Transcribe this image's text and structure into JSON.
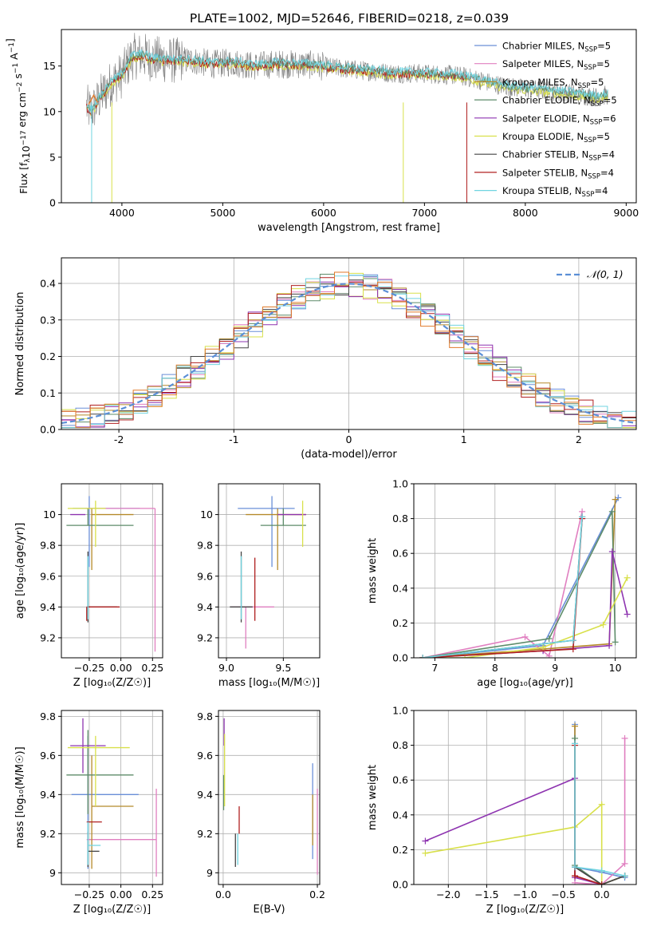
{
  "title": "PLATE=1002, MJD=52646, FIBERID=0218, z=0.039",
  "colors": {
    "chabrier_miles": "#6a8fd8",
    "salpeter_miles": "#e07fc0",
    "kroupa_miles": "#b58a2a",
    "chabrier_elodie": "#5e8c6a",
    "salpeter_elodie": "#8e34b0",
    "kroupa_elodie": "#d8e04a",
    "chabrier_stelib": "#444444",
    "salpeter_stelib": "#b02020",
    "kroupa_stelib": "#70d4e0",
    "data": "#808080",
    "orange": "#e07a2a"
  },
  "legend": [
    {
      "name": "Chabrier MILES, N",
      "sub": "SSP",
      "suffix": "=5",
      "color_key": "chabrier_miles"
    },
    {
      "name": "Salpeter MILES, N",
      "sub": "SSP",
      "suffix": "=5",
      "color_key": "salpeter_miles"
    },
    {
      "name": "Kroupa MILES, N",
      "sub": "SSP",
      "suffix": "=5",
      "color_key": "kroupa_miles"
    },
    {
      "name": "Chabrier ELODIE, N",
      "sub": "SSP",
      "suffix": "=5",
      "color_key": "chabrier_elodie"
    },
    {
      "name": "Salpeter ELODIE, N",
      "sub": "SSP",
      "suffix": "=6",
      "color_key": "salpeter_elodie"
    },
    {
      "name": "Kroupa ELODIE, N",
      "sub": "SSP",
      "suffix": "=5",
      "color_key": "kroupa_elodie"
    },
    {
      "name": "Chabrier STELIB, N",
      "sub": "SSP",
      "suffix": "=4",
      "color_key": "chabrier_stelib"
    },
    {
      "name": "Salpeter STELIB, N",
      "sub": "SSP",
      "suffix": "=4",
      "color_key": "salpeter_stelib"
    },
    {
      "name": "Kroupa STELIB, N",
      "sub": "SSP",
      "suffix": "=4",
      "color_key": "kroupa_stelib"
    }
  ],
  "chart_data": [
    {
      "id": "spectrum",
      "type": "line",
      "xlabel": "wavelength [Angstrom, rest frame]",
      "ylabel_parts": [
        "Flux [f",
        "λ",
        "10",
        "−17",
        " erg cm",
        "−2",
        " s",
        "−1",
        " A",
        "−1",
        "]"
      ],
      "xlim": [
        3400,
        9100
      ],
      "ylim": [
        0,
        19
      ],
      "xticks": [
        4000,
        5000,
        6000,
        7000,
        8000,
        9000
      ],
      "yticks": [
        0,
        5,
        10,
        15
      ],
      "series_anchor_x": [
        3650,
        3700,
        3800,
        3900,
        4000,
        4100,
        4200,
        4300,
        4500,
        4700,
        4900,
        5100,
        5300,
        5500,
        5700,
        5900,
        6100,
        6300,
        6500,
        6700,
        6900,
        7100,
        7300,
        7500,
        7700,
        7900,
        8100,
        8300,
        8500,
        8700,
        8800
      ],
      "series_anchor_y": [
        10.5,
        10.0,
        11.8,
        13.2,
        14.0,
        16.0,
        16.2,
        15.8,
        15.6,
        15.6,
        15.2,
        15.4,
        15.0,
        15.2,
        15.2,
        15.1,
        14.8,
        14.6,
        14.4,
        14.2,
        14.2,
        14.1,
        14.0,
        13.6,
        13.0,
        12.6,
        12.4,
        12.2,
        11.9,
        11.6,
        11.8
      ]
    },
    {
      "id": "residuals",
      "type": "step",
      "xlabel": "(data-model)/error",
      "ylabel": "Normed distribution",
      "xlim": [
        -2.5,
        2.5
      ],
      "ylim": [
        0,
        0.47
      ],
      "xticks": [
        -2,
        -1,
        0,
        1,
        2
      ],
      "yticks": [
        0.0,
        0.1,
        0.2,
        0.3,
        0.4
      ],
      "bin_width": 0.125,
      "gaussian_label": "𝒩(0, 1)"
    },
    {
      "id": "age_vs_Z",
      "type": "errorbar",
      "xlabel": "Z [log₁₀(Z/Z☉)]",
      "ylabel": "age  [log₁₀(age/yr)]",
      "xlim": [
        -0.47,
        0.33
      ],
      "ylim": [
        9.07,
        10.2
      ],
      "xticks": [
        -0.25,
        0.0,
        0.25
      ],
      "xtick_labels": [
        "−0.25",
        "0.00",
        "0.25"
      ],
      "yticks": [
        9.2,
        9.4,
        9.6,
        9.8,
        10.0
      ],
      "items": [
        {
          "c": "chabrier_miles",
          "x": -0.25,
          "y": 10.04,
          "xe": [
            0.13,
            0.4
          ],
          "ye": [
            0.38,
            0.08
          ]
        },
        {
          "c": "salpeter_miles",
          "x": 0.27,
          "y": 10.04,
          "xe": [
            0.55,
            0.0
          ],
          "ye": [
            0.93,
            0.0
          ]
        },
        {
          "c": "kroupa_miles",
          "x": -0.23,
          "y": 10.0,
          "xe": [
            0.0,
            0.33
          ],
          "ye": [
            0.36,
            0.04
          ]
        },
        {
          "c": "chabrier_elodie",
          "x": -0.26,
          "y": 9.93,
          "xe": [
            0.17,
            0.36
          ],
          "ye": [
            0.0,
            0.11
          ]
        },
        {
          "c": "salpeter_elodie",
          "x": -0.28,
          "y": 10.0,
          "xe": [
            0.12,
            0.0
          ],
          "ye": [
            0.0,
            0.0
          ]
        },
        {
          "c": "kroupa_elodie",
          "x": -0.2,
          "y": 10.04,
          "xe": [
            0.22,
            0.08
          ],
          "ye": [
            0.25,
            0.05
          ]
        },
        {
          "c": "chabrier_stelib",
          "x": -0.26,
          "y": 9.4,
          "xe": [
            0.0,
            0.23
          ],
          "ye": [
            0.1,
            0.36
          ]
        },
        {
          "c": "salpeter_stelib",
          "x": -0.27,
          "y": 9.4,
          "xe": [
            0.0,
            0.26
          ],
          "ye": [
            0.09,
            0.0
          ]
        },
        {
          "c": "kroupa_stelib",
          "x": -0.26,
          "y": 9.4,
          "xe": [
            0.0,
            0.0
          ],
          "ye": [
            0.08,
            0.33
          ]
        }
      ]
    },
    {
      "id": "age_vs_mass",
      "type": "errorbar",
      "xlabel": "mass [log₁₀(M/M☉)]",
      "ylabel": "",
      "xlim": [
        8.93,
        9.82
      ],
      "ylim": [
        9.07,
        10.2
      ],
      "xticks": [
        9.0,
        9.5
      ],
      "xtick_labels": [
        "9.0",
        "9.5"
      ],
      "yticks": [
        9.2,
        9.4,
        9.6,
        9.8,
        10.0
      ],
      "items": [
        {
          "c": "chabrier_miles",
          "x": 9.4,
          "y": 10.04,
          "xe": [
            0.3,
            0.2
          ],
          "ye": [
            0.38,
            0.08
          ]
        },
        {
          "c": "salpeter_miles",
          "x": 9.17,
          "y": 9.4,
          "xe": [
            0.13,
            0.25
          ],
          "ye": [
            0.27,
            0.0
          ]
        },
        {
          "c": "kroupa_miles",
          "x": 9.45,
          "y": 10.0,
          "xe": [
            0.28,
            0.25
          ],
          "ye": [
            0.36,
            0.04
          ]
        },
        {
          "c": "chabrier_elodie",
          "x": 9.5,
          "y": 9.93,
          "xe": [
            0.2,
            0.2
          ],
          "ye": [
            0.0,
            0.11
          ]
        },
        {
          "c": "salpeter_elodie",
          "x": 9.6,
          "y": 10.0,
          "xe": [
            0.15,
            0.1
          ],
          "ye": [
            0.0,
            0.0
          ]
        },
        {
          "c": "kroupa_elodie",
          "x": 9.67,
          "y": 10.04,
          "xe": [
            0.0,
            0.0
          ],
          "ye": [
            0.25,
            0.05
          ]
        },
        {
          "c": "chabrier_stelib",
          "x": 9.13,
          "y": 9.4,
          "xe": [
            0.1,
            0.1
          ],
          "ye": [
            0.1,
            0.36
          ]
        },
        {
          "c": "salpeter_stelib",
          "x": 9.25,
          "y": 9.4,
          "xe": [
            0.0,
            0.0
          ],
          "ye": [
            0.09,
            0.32
          ]
        },
        {
          "c": "kroupa_stelib",
          "x": 9.13,
          "y": 9.4,
          "xe": [
            0.0,
            0.0
          ],
          "ye": [
            0.08,
            0.33
          ]
        }
      ]
    },
    {
      "id": "weight_vs_age",
      "type": "line",
      "xlabel": "age  [log₁₀(age/yr)]",
      "ylabel": "mass weight",
      "xlim": [
        6.65,
        10.35
      ],
      "ylim": [
        0,
        1
      ],
      "xticks": [
        7,
        8,
        9,
        10
      ],
      "yticks": [
        0.0,
        0.2,
        0.4,
        0.6,
        0.8,
        1.0
      ],
      "series": [
        {
          "c": "chabrier_miles",
          "x": [
            6.8,
            8.8,
            10.05
          ],
          "y": [
            0.0,
            0.07,
            0.92
          ]
        },
        {
          "c": "salpeter_miles",
          "x": [
            6.8,
            8.5,
            8.9,
            9.45
          ],
          "y": [
            0.0,
            0.12,
            0.01,
            0.84
          ]
        },
        {
          "c": "kroupa_miles",
          "x": [
            6.8,
            8.8,
            9.9,
            10.0
          ],
          "y": [
            0.0,
            0.05,
            0.08,
            0.91
          ]
        },
        {
          "c": "chabrier_elodie",
          "x": [
            6.8,
            8.9,
            9.95,
            10.0
          ],
          "y": [
            0.0,
            0.11,
            0.84,
            0.09
          ]
        },
        {
          "c": "salpeter_elodie",
          "x": [
            6.8,
            8.8,
            9.9,
            9.95,
            10.2
          ],
          "y": [
            0.0,
            0.04,
            0.07,
            0.61,
            0.25
          ]
        },
        {
          "c": "kroupa_elodie",
          "x": [
            6.8,
            7.5,
            8.8,
            9.8,
            10.2
          ],
          "y": [
            0.0,
            0.0,
            0.06,
            0.19,
            0.46
          ]
        },
        {
          "c": "chabrier_stelib",
          "x": [
            6.8,
            9.3,
            9.45
          ],
          "y": [
            0.0,
            0.1,
            0.81
          ]
        },
        {
          "c": "salpeter_stelib",
          "x": [
            6.8,
            9.3,
            9.45
          ],
          "y": [
            0.0,
            0.05,
            0.8
          ]
        },
        {
          "c": "kroupa_stelib",
          "x": [
            6.8,
            9.3,
            9.45
          ],
          "y": [
            0.0,
            0.1,
            0.81
          ]
        }
      ]
    },
    {
      "id": "mass_vs_Z",
      "type": "errorbar",
      "xlabel": "Z [log₁₀(Z/Z☉)]",
      "ylabel": "mass [log₁₀(M/M☉)]",
      "xlim": [
        -0.47,
        0.33
      ],
      "ylim": [
        8.94,
        9.83
      ],
      "xticks": [
        -0.25,
        0.0,
        0.25
      ],
      "xtick_labels": [
        "−0.25",
        "0.00",
        "0.25"
      ],
      "yticks": [
        9.0,
        9.2,
        9.4,
        9.6,
        9.8
      ],
      "items": [
        {
          "c": "chabrier_miles",
          "x": -0.26,
          "y": 9.4,
          "xe": [
            0.13,
            0.4
          ],
          "ye": [
            0.38,
            0.3
          ]
        },
        {
          "c": "salpeter_miles",
          "x": 0.28,
          "y": 9.17,
          "xe": [
            0.55,
            0.0
          ],
          "ye": [
            0.19,
            0.26
          ]
        },
        {
          "c": "kroupa_miles",
          "x": -0.23,
          "y": 9.34,
          "xe": [
            0.0,
            0.33
          ],
          "ye": [
            0.32,
            0.26
          ]
        },
        {
          "c": "chabrier_elodie",
          "x": -0.26,
          "y": 9.5,
          "xe": [
            0.17,
            0.36
          ],
          "ye": [
            0.2,
            0.23
          ]
        },
        {
          "c": "salpeter_elodie",
          "x": -0.3,
          "y": 9.65,
          "xe": [
            0.1,
            0.18
          ],
          "ye": [
            0.14,
            0.14
          ]
        },
        {
          "c": "kroupa_elodie",
          "x": -0.2,
          "y": 9.64,
          "xe": [
            0.22,
            0.27
          ],
          "ye": [
            0.3,
            0.06
          ]
        },
        {
          "c": "chabrier_stelib",
          "x": -0.26,
          "y": 9.11,
          "xe": [
            0.0,
            0.09
          ],
          "ye": [
            0.08,
            0.1
          ]
        },
        {
          "c": "salpeter_stelib",
          "x": -0.27,
          "y": 9.26,
          "xe": [
            0.0,
            0.12
          ],
          "ye": [
            0.0,
            0.0
          ]
        },
        {
          "c": "kroupa_stelib",
          "x": -0.26,
          "y": 9.14,
          "xe": [
            0.0,
            0.1
          ],
          "ye": [
            0.1,
            0.12
          ]
        }
      ]
    },
    {
      "id": "mass_vs_ebv",
      "type": "errorbar",
      "xlabel": "E(B-V)",
      "ylabel": "",
      "xlim": [
        -0.01,
        0.205
      ],
      "ylim": [
        8.94,
        9.83
      ],
      "xticks": [
        0.0,
        0.2
      ],
      "xtick_labels": [
        "0.0",
        "0.2"
      ],
      "yticks": [
        9.0,
        9.2,
        9.4,
        9.6,
        9.8
      ],
      "items": [
        {
          "c": "chabrier_miles",
          "x": 0.19,
          "y": 9.4,
          "xe": [
            0,
            0
          ],
          "ye": [
            0.33,
            0.16
          ]
        },
        {
          "c": "salpeter_miles",
          "x": 0.2,
          "y": 9.17,
          "xe": [
            0,
            0
          ],
          "ye": [
            0.18,
            0.26
          ]
        },
        {
          "c": "kroupa_miles",
          "x": 0.19,
          "y": 9.34,
          "xe": [
            0,
            0
          ],
          "ye": [
            0.2,
            0.06
          ]
        },
        {
          "c": "chabrier_elodie",
          "x": 0.001,
          "y": 9.5,
          "xe": [
            0,
            0
          ],
          "ye": [
            0.18,
            0.0
          ]
        },
        {
          "c": "salpeter_elodie",
          "x": 0.002,
          "y": 9.65,
          "xe": [
            0,
            0
          ],
          "ye": [
            0.0,
            0.14
          ]
        },
        {
          "c": "kroupa_elodie",
          "x": 0.003,
          "y": 9.64,
          "xe": [
            0,
            0
          ],
          "ye": [
            0.3,
            0.07
          ]
        },
        {
          "c": "chabrier_stelib",
          "x": 0.026,
          "y": 9.11,
          "xe": [
            0,
            0
          ],
          "ye": [
            0.08,
            0.09
          ]
        },
        {
          "c": "salpeter_stelib",
          "x": 0.034,
          "y": 9.26,
          "xe": [
            0,
            0
          ],
          "ye": [
            0.06,
            0.08
          ]
        },
        {
          "c": "kroupa_stelib",
          "x": 0.031,
          "y": 9.14,
          "xe": [
            0,
            0
          ],
          "ye": [
            0.1,
            0.06
          ]
        }
      ]
    },
    {
      "id": "weight_vs_Z",
      "type": "line",
      "xlabel": "Z [log₁₀(Z/Z☉)]",
      "ylabel": "mass weight",
      "xlim": [
        -2.45,
        0.45
      ],
      "ylim": [
        0,
        1
      ],
      "xticks": [
        -2.0,
        -1.5,
        -1.0,
        -0.5,
        0.0
      ],
      "xtick_labels": [
        "−2.0",
        "−1.5",
        "−1.0",
        "−0.5",
        "0.0"
      ],
      "yticks": [
        0.0,
        0.2,
        0.4,
        0.6,
        0.8,
        1.0
      ],
      "series": [
        {
          "c": "chabrier_miles",
          "x": [
            -0.35,
            -0.35,
            0.0,
            0.3
          ],
          "y": [
            0.92,
            0.1,
            0.07,
            0.04
          ]
        },
        {
          "c": "salpeter_miles",
          "x": [
            -0.35,
            0.0,
            0.3,
            0.3
          ],
          "y": [
            0.01,
            0.0,
            0.12,
            0.84
          ]
        },
        {
          "c": "kroupa_miles",
          "x": [
            -0.35,
            -0.35,
            0.0,
            0.3
          ],
          "y": [
            0.91,
            0.05,
            0.0,
            0.05
          ]
        },
        {
          "c": "chabrier_elodie",
          "x": [
            -0.35,
            -0.35,
            0.0,
            0.3
          ],
          "y": [
            0.84,
            0.11,
            0.0,
            0.05
          ]
        },
        {
          "c": "salpeter_elodie",
          "x": [
            -2.3,
            -0.35,
            -0.35,
            0.0,
            0.3
          ],
          "y": [
            0.25,
            0.61,
            0.04,
            0.0,
            0.05
          ]
        },
        {
          "c": "kroupa_elodie",
          "x": [
            -2.3,
            -0.35,
            0.0,
            0.0,
            0.3
          ],
          "y": [
            0.18,
            0.33,
            0.46,
            0.0,
            0.05
          ]
        },
        {
          "c": "chabrier_stelib",
          "x": [
            -0.35,
            -0.35,
            0.0,
            0.3
          ],
          "y": [
            0.81,
            0.1,
            0.0,
            0.05
          ]
        },
        {
          "c": "salpeter_stelib",
          "x": [
            -0.35,
            -0.35,
            0.0
          ],
          "y": [
            0.8,
            0.05,
            0.0
          ]
        },
        {
          "c": "kroupa_stelib",
          "x": [
            -0.35,
            -0.35,
            0.0,
            0.3
          ],
          "y": [
            0.81,
            0.1,
            0.08,
            0.05
          ]
        }
      ]
    }
  ]
}
